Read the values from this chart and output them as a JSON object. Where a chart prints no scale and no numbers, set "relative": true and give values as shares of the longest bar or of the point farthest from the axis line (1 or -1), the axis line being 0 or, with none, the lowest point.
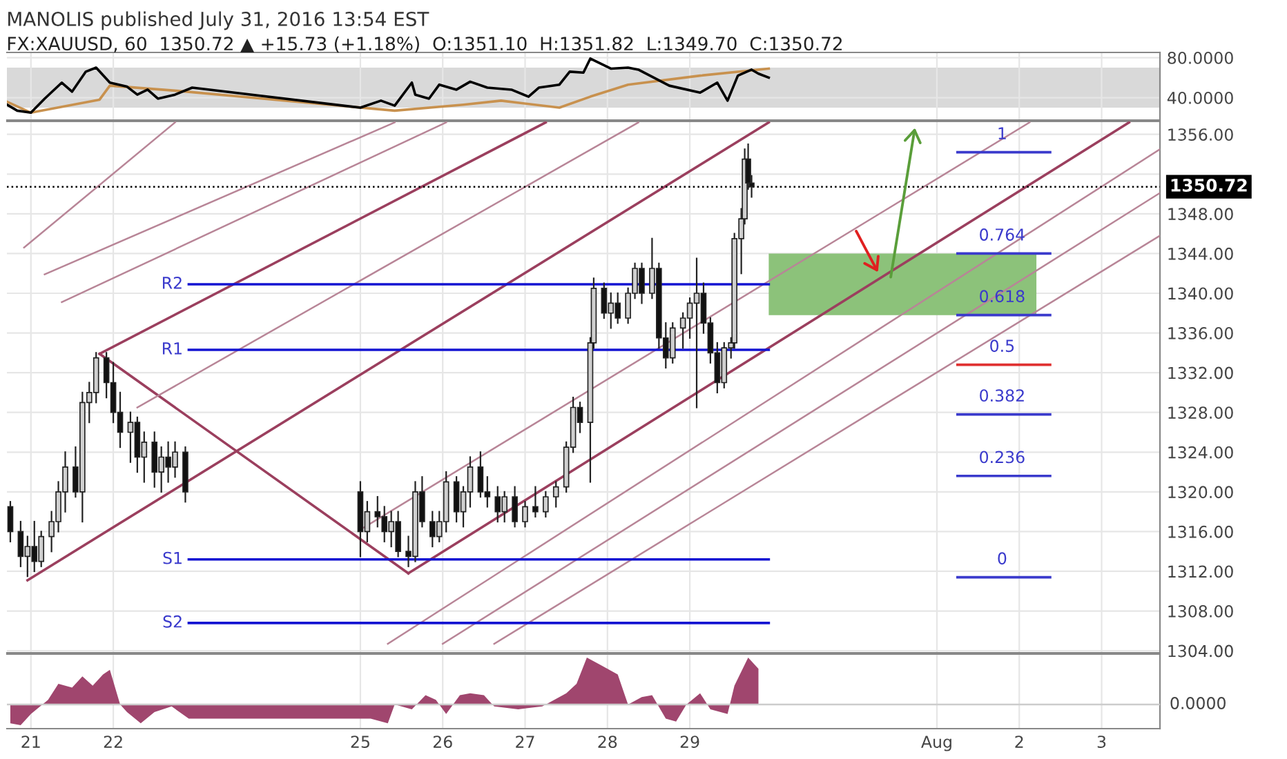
{
  "chart_data": [
    {
      "type": "line",
      "title": "MANOLIS published July 31, 2016 13:54 EST",
      "subtitle": "FX:XAUUSD, 60  1350.72 ▲ +15.73 (+1.18%)  O:1351.10  H:1351.82  L:1349.70  C:1350.72",
      "xlim": [
        "2016-07-20T17:00",
        "2016-08-03T17:00"
      ],
      "xticks": [
        {
          "value": "2016-07-21",
          "label": null
        },
        {
          "value": "2016-07-22",
          "label": null
        },
        {
          "value": "2016-07-25",
          "label": null
        },
        {
          "value": "2016-07-26",
          "label": null
        },
        {
          "value": "2016-07-27",
          "label": null
        },
        {
          "value": "2016-07-28",
          "label": null
        },
        {
          "value": "2016-07-29",
          "label": null
        },
        {
          "value": "2016-08-01",
          "label": null
        },
        {
          "value": "2016-08-02",
          "label": null
        },
        {
          "value": "2016-08-03",
          "label": null
        }
      ],
      "ylim": [
        17.6,
        85.2
      ],
      "yticks": [
        {
          "value": 40,
          "label": "40.0000"
        },
        {
          "value": 80,
          "label": "80.0000"
        }
      ],
      "tick_labels": "y",
      "grid": true,
      "legend": false,
      "bands": [
        {
          "axis": "y",
          "from": 30,
          "to": 70,
          "color": "#d9d9d9"
        }
      ],
      "series": [
        {
          "color": "#c8914e",
          "x": [
            "2016-07-20T17:00",
            "2016-07-21T00:00",
            "2016-07-21T20:00",
            "2016-07-21T23:00",
            "2016-07-22T18:00",
            "2016-07-25T10:00",
            "2016-07-26T06:00",
            "2016-07-26T17:00",
            "2016-07-27T10:00",
            "2016-07-27T19:00",
            "2016-07-28T06:00",
            "2016-07-29T03:00",
            "2016-07-29T23:00"
          ],
          "values": [
            36,
            25,
            38,
            52,
            47,
            27,
            33,
            37,
            30,
            41,
            53,
            62,
            69
          ]
        },
        {
          "color": "#000000",
          "x": [
            "2016-07-20T17:00",
            "2016-07-20T20:00",
            "2016-07-21T00:00",
            "2016-07-21T04:00",
            "2016-07-21T09:00",
            "2016-07-21T12:00",
            "2016-07-21T16:00",
            "2016-07-21T19:00",
            "2016-07-21T23:00",
            "2016-07-22T04:00",
            "2016-07-22T07:00",
            "2016-07-22T10:00",
            "2016-07-22T13:00",
            "2016-07-22T18:00",
            "2016-07-22T23:00",
            "2016-07-25T00:00",
            "2016-07-25T06:00",
            "2016-07-25T10:00",
            "2016-07-25T15:00",
            "2016-07-25T16:00",
            "2016-07-25T20:00",
            "2016-07-25T23:00",
            "2016-07-26T04:00",
            "2016-07-26T08:00",
            "2016-07-26T13:00",
            "2016-07-26T20:00",
            "2016-07-27T01:00",
            "2016-07-27T04:00",
            "2016-07-27T10:00",
            "2016-07-27T13:00",
            "2016-07-27T17:00",
            "2016-07-27T19:00",
            "2016-07-28T01:00",
            "2016-07-28T06:00",
            "2016-07-28T09:00",
            "2016-07-28T18:00",
            "2016-07-29T03:00",
            "2016-07-29T08:00",
            "2016-07-29T11:00",
            "2016-07-29T14:00",
            "2016-07-29T18:00",
            "2016-07-29T20:00",
            "2016-07-29T23:00"
          ],
          "values": [
            33,
            27,
            25,
            39,
            55,
            46,
            66,
            70,
            55,
            51,
            43,
            48,
            39,
            43,
            50,
            30,
            37,
            32,
            55,
            43,
            39,
            53,
            48,
            56,
            50,
            48,
            41,
            50,
            53,
            66,
            65,
            79,
            69,
            70,
            68,
            52,
            45,
            55,
            37,
            62,
            68,
            64,
            60
          ]
        }
      ]
    },
    {
      "type": "candlestick",
      "xlim": [
        "2016-07-20T17:00",
        "2016-08-03T17:00"
      ],
      "xticks": [
        {
          "value": "2016-07-21",
          "label": null
        },
        {
          "value": "2016-07-22",
          "label": null
        },
        {
          "value": "2016-07-25",
          "label": null
        },
        {
          "value": "2016-07-26",
          "label": null
        },
        {
          "value": "2016-07-27",
          "label": null
        },
        {
          "value": "2016-07-28",
          "label": null
        },
        {
          "value": "2016-07-29",
          "label": null
        },
        {
          "value": "2016-08-01",
          "label": null
        },
        {
          "value": "2016-08-02",
          "label": null
        },
        {
          "value": "2016-08-03",
          "label": null
        }
      ],
      "ylim": [
        1303.8,
        1357.3
      ],
      "yticks": [
        {
          "value": 1304,
          "label": "1304.00"
        },
        {
          "value": 1308,
          "label": "1308.00"
        },
        {
          "value": 1312,
          "label": "1312.00"
        },
        {
          "value": 1316,
          "label": "1316.00"
        },
        {
          "value": 1320,
          "label": "1320.00"
        },
        {
          "value": 1324,
          "label": "1324.00"
        },
        {
          "value": 1328,
          "label": "1328.00"
        },
        {
          "value": 1332,
          "label": "1332.00"
        },
        {
          "value": 1336,
          "label": "1336.00"
        },
        {
          "value": 1340,
          "label": "1340.00"
        },
        {
          "value": 1344,
          "label": "1344.00"
        },
        {
          "value": 1348,
          "label": "1348.00"
        },
        {
          "value": 1352,
          "label": null
        },
        {
          "value": 1356,
          "label": "1356.00"
        }
      ],
      "tick_labels": "y",
      "grid": true,
      "legend": false,
      "ref_lines": [
        {
          "axis": "y",
          "value": 1350.72,
          "label": "1350.72",
          "color": "#000000",
          "line_style": "dotted"
        }
      ],
      "x": [
        "2016-07-20T18:00",
        "2016-07-20T21:00",
        "2016-07-20T23:00",
        "2016-07-21T01:00",
        "2016-07-21T03:00",
        "2016-07-21T06:00",
        "2016-07-21T08:00",
        "2016-07-21T10:00",
        "2016-07-21T13:00",
        "2016-07-21T15:00",
        "2016-07-21T17:00",
        "2016-07-21T19:00",
        "2016-07-21T22:00",
        "2016-07-22T00:00",
        "2016-07-22T02:00",
        "2016-07-22T05:00",
        "2016-07-22T07:00",
        "2016-07-22T09:00",
        "2016-07-22T12:00",
        "2016-07-22T14:00",
        "2016-07-22T16:00",
        "2016-07-22T18:00",
        "2016-07-22T21:00",
        "2016-07-25T00:00",
        "2016-07-25T02:00",
        "2016-07-25T05:00",
        "2016-07-25T07:00",
        "2016-07-25T09:00",
        "2016-07-25T11:00",
        "2016-07-25T14:00",
        "2016-07-25T16:00",
        "2016-07-25T18:00",
        "2016-07-25T21:00",
        "2016-07-25T23:00",
        "2016-07-26T01:00",
        "2016-07-26T04:00",
        "2016-07-26T06:00",
        "2016-07-26T08:00",
        "2016-07-26T11:00",
        "2016-07-26T13:00",
        "2016-07-26T16:00",
        "2016-07-26T18:00",
        "2016-07-26T21:00",
        "2016-07-27T00:00",
        "2016-07-27T03:00",
        "2016-07-27T06:00",
        "2016-07-27T09:00",
        "2016-07-27T12:00",
        "2016-07-27T14:00",
        "2016-07-27T16:00",
        "2016-07-27T19:00",
        "2016-07-27T20:00",
        "2016-07-27T23:00",
        "2016-07-28T01:00",
        "2016-07-28T03:00",
        "2016-07-28T06:00",
        "2016-07-28T08:00",
        "2016-07-28T10:00",
        "2016-07-28T13:00",
        "2016-07-28T15:00",
        "2016-07-28T17:00",
        "2016-07-28T19:00",
        "2016-07-28T22:00",
        "2016-07-29T00:00",
        "2016-07-29T02:00",
        "2016-07-29T04:00",
        "2016-07-29T06:00",
        "2016-07-29T08:00",
        "2016-07-29T10:00",
        "2016-07-29T12:00",
        "2016-07-29T13:00",
        "2016-07-29T15:00",
        "2016-07-29T16:00",
        "2016-07-29T17:00",
        "2016-07-29T18:00"
      ],
      "ohlc": [
        [
          1318.5,
          1319,
          1315,
          1316
        ],
        [
          1316,
          1317,
          1312.5,
          1313.5
        ],
        [
          1313.5,
          1315.5,
          1311.5,
          1314.5
        ],
        [
          1314.5,
          1317,
          1312,
          1313
        ],
        [
          1313,
          1316,
          1312.5,
          1315.5
        ],
        [
          1315.5,
          1318,
          1314,
          1317
        ],
        [
          1317,
          1321,
          1316,
          1320
        ],
        [
          1320,
          1324,
          1318,
          1322.5
        ],
        [
          1322.5,
          1324.5,
          1319.5,
          1320
        ],
        [
          1320,
          1330,
          1317,
          1329
        ],
        [
          1329,
          1331,
          1327,
          1330
        ],
        [
          1330,
          1334,
          1329,
          1333.5
        ],
        [
          1333.5,
          1334,
          1329.5,
          1331
        ],
        [
          1331,
          1333,
          1327,
          1328
        ],
        [
          1328,
          1330,
          1324.5,
          1326
        ],
        [
          1326,
          1328,
          1323,
          1327
        ],
        [
          1327,
          1327.5,
          1322,
          1323.5
        ],
        [
          1323.5,
          1326,
          1321,
          1325
        ],
        [
          1325,
          1326,
          1320.5,
          1322
        ],
        [
          1322,
          1324.5,
          1320,
          1323.5
        ],
        [
          1323.5,
          1325,
          1321,
          1322.5
        ],
        [
          1322.5,
          1325,
          1321.5,
          1324
        ],
        [
          1324,
          1324.5,
          1319,
          1320
        ],
        [
          1320,
          1321,
          1313.5,
          1316
        ],
        [
          1316,
          1319,
          1315,
          1318
        ],
        [
          1318,
          1319.5,
          1316.5,
          1317.5
        ],
        [
          1317.5,
          1318.5,
          1315,
          1316
        ],
        [
          1316,
          1318,
          1314.5,
          1317
        ],
        [
          1317,
          1318,
          1313.5,
          1314
        ],
        [
          1314,
          1315.5,
          1312.5,
          1313.5
        ],
        [
          1313.5,
          1321,
          1313,
          1320
        ],
        [
          1320,
          1321.5,
          1316.5,
          1317
        ],
        [
          1317,
          1318,
          1314.5,
          1315.5
        ],
        [
          1315.5,
          1318,
          1315,
          1317
        ],
        [
          1317,
          1322,
          1316,
          1321
        ],
        [
          1321,
          1321.5,
          1317,
          1318
        ],
        [
          1318,
          1320.5,
          1316.5,
          1320
        ],
        [
          1320,
          1323.5,
          1318.5,
          1322.5
        ],
        [
          1322.5,
          1324,
          1319.5,
          1320
        ],
        [
          1320,
          1321.5,
          1318.5,
          1319.5
        ],
        [
          1319.5,
          1320.5,
          1317,
          1318
        ],
        [
          1318,
          1320,
          1317,
          1319.5
        ],
        [
          1319.5,
          1320.5,
          1316.5,
          1317
        ],
        [
          1317,
          1319,
          1316.5,
          1318.5
        ],
        [
          1318.5,
          1320.5,
          1317.5,
          1318
        ],
        [
          1318,
          1320,
          1317.5,
          1319.5
        ],
        [
          1319.5,
          1321,
          1318.5,
          1320.5
        ],
        [
          1320.5,
          1325,
          1320,
          1324.5
        ],
        [
          1324.5,
          1329.5,
          1324,
          1328.5
        ],
        [
          1328.5,
          1329,
          1326,
          1327
        ],
        [
          1327,
          1335.5,
          1321,
          1335
        ],
        [
          1335,
          1341.5,
          1334.5,
          1340.5
        ],
        [
          1340.5,
          1341,
          1337.5,
          1338
        ],
        [
          1338,
          1340,
          1336.5,
          1339
        ],
        [
          1339,
          1340,
          1337,
          1337.5
        ],
        [
          1337.5,
          1340.5,
          1337,
          1340
        ],
        [
          1340,
          1343,
          1339.5,
          1342.5
        ],
        [
          1342.5,
          1343,
          1339,
          1340
        ],
        [
          1340,
          1345.5,
          1339.5,
          1342.5
        ],
        [
          1342.5,
          1343,
          1334.5,
          1335.5
        ],
        [
          1335.5,
          1337,
          1332.5,
          1333.5
        ],
        [
          1333.5,
          1337,
          1333,
          1336.5
        ],
        [
          1336.5,
          1338,
          1334.5,
          1337.5
        ],
        [
          1337.5,
          1339.5,
          1335.5,
          1339
        ],
        [
          1339,
          1343.5,
          1328.5,
          1340
        ],
        [
          1340,
          1341,
          1336,
          1337
        ],
        [
          1337,
          1337.5,
          1333,
          1334
        ],
        [
          1334,
          1335,
          1330,
          1331
        ],
        [
          1331,
          1335,
          1330.5,
          1334.5
        ],
        [
          1334.5,
          1335.5,
          1333.5,
          1335
        ],
        [
          1335,
          1346,
          1334.5,
          1345.5
        ],
        [
          1345.5,
          1348.5,
          1342,
          1347.5
        ],
        [
          1347.5,
          1354.5,
          1347,
          1353.5
        ],
        [
          1353.5,
          1355,
          1350.5,
          1351.1
        ],
        [
          1351.1,
          1351.82,
          1349.7,
          1350.72
        ]
      ],
      "series": [
        {
          "type": "bar",
          "color": "#8cc27a",
          "x": [
            "2016-07-31T14:00"
          ],
          "values": [
            6.2
          ],
          "base": [
            1337.8
          ]
        },
        {
          "type": "line",
          "color": "#9b3f5e",
          "x": [
            "2016-07-21T20:00",
            "2016-07-25T14:00"
          ],
          "values": [
            1333.9,
            1311.8
          ]
        },
        {
          "type": "line",
          "color": "#9b3f5e",
          "x": [
            "2016-07-21T20:00",
            "2016-07-27T06:00"
          ],
          "values": [
            1333.9,
            1357.2
          ]
        },
        {
          "type": "line",
          "color": "#9b3f5e",
          "x": [
            "2016-07-20T23:00",
            "2016-07-29T23:00"
          ],
          "values": [
            1311.1,
            1357.2
          ]
        },
        {
          "type": "line",
          "color": "#9b3f5e",
          "x": [
            "2016-07-25T14:00",
            "2016-08-03T08:00"
          ],
          "values": [
            1311.8,
            1357.2
          ]
        },
        {
          "type": "line",
          "color": "#b88597",
          "x": [
            "2016-07-20T22:00",
            "2016-07-22T18:00"
          ],
          "values": [
            1344.6,
            1357.2
          ]
        },
        {
          "type": "line",
          "color": "#b88597",
          "x": [
            "2016-07-21T04:00",
            "2016-07-25T10:00"
          ],
          "values": [
            1341.9,
            1357.2
          ]
        },
        {
          "type": "line",
          "color": "#b88597",
          "x": [
            "2016-07-21T09:00",
            "2016-07-26T01:00"
          ],
          "values": [
            1339.1,
            1357.2
          ]
        },
        {
          "type": "line",
          "color": "#b88597",
          "x": [
            "2016-07-22T07:00",
            "2016-07-28T09:00"
          ],
          "values": [
            1328.5,
            1357.2
          ]
        },
        {
          "type": "line",
          "color": "#b88597",
          "x": [
            "2016-07-25T01:00",
            "2016-08-02T03:00"
          ],
          "values": [
            1316.4,
            1357.2
          ]
        },
        {
          "type": "line",
          "color": "#b88597",
          "x": [
            "2016-07-25T08:00",
            "2016-08-03T17:00"
          ],
          "values": [
            1304.7,
            1354.5
          ]
        },
        {
          "type": "line",
          "color": "#b88597",
          "x": [
            "2016-07-26T00:00",
            "2016-08-03T17:00"
          ],
          "values": [
            1304.7,
            1350.1
          ]
        },
        {
          "type": "line",
          "color": "#b88597",
          "x": [
            "2016-07-26T15:00",
            "2016-08-03T17:00"
          ],
          "values": [
            1304.7,
            1345.8
          ]
        },
        {
          "type": "line",
          "color": "#1414d2",
          "x": [
            "2016-07-22T22:00",
            "2016-07-29T23:00"
          ],
          "values": [
            1340.9,
            1340.9
          ]
        },
        {
          "type": "line",
          "color": "#1414d2",
          "x": [
            "2016-07-22T22:00",
            "2016-07-29T23:00"
          ],
          "values": [
            1334.3,
            1334.3
          ]
        },
        {
          "type": "line",
          "color": "#1414d2",
          "x": [
            "2016-07-22T22:00",
            "2016-07-29T23:00"
          ],
          "values": [
            1313.2,
            1313.2
          ]
        },
        {
          "type": "line",
          "color": "#1414d2",
          "x": [
            "2016-07-22T22:00",
            "2016-07-29T23:00"
          ],
          "values": [
            1306.8,
            1306.8
          ]
        },
        {
          "type": "line",
          "color": "#3a3acc",
          "x": [
            "2016-08-01T06:00",
            "2016-08-02T09:00"
          ],
          "values": [
            1354.2,
            1354.2
          ]
        },
        {
          "type": "line",
          "color": "#3a3acc",
          "x": [
            "2016-08-01T06:00",
            "2016-08-02T09:00"
          ],
          "values": [
            1344.0,
            1344.0
          ]
        },
        {
          "type": "line",
          "color": "#3a3acc",
          "x": [
            "2016-08-01T06:00",
            "2016-08-02T09:00"
          ],
          "values": [
            1337.8,
            1337.8
          ]
        },
        {
          "type": "line",
          "color": "#e03030",
          "x": [
            "2016-08-01T06:00",
            "2016-08-02T09:00"
          ],
          "values": [
            1332.8,
            1332.8
          ]
        },
        {
          "type": "line",
          "color": "#3a3acc",
          "x": [
            "2016-08-01T06:00",
            "2016-08-02T09:00"
          ],
          "values": [
            1327.8,
            1327.8
          ]
        },
        {
          "type": "line",
          "color": "#3a3acc",
          "x": [
            "2016-08-01T06:00",
            "2016-08-02T09:00"
          ],
          "values": [
            1321.6,
            1321.6
          ]
        },
        {
          "type": "line",
          "color": "#3a3acc",
          "x": [
            "2016-08-01T06:00",
            "2016-08-02T09:00"
          ],
          "values": [
            1311.4,
            1311.4
          ]
        }
      ],
      "annotations": [
        {
          "text": "R2",
          "x": "2016-07-22T22:00",
          "y": 1340.9
        },
        {
          "text": "R1",
          "x": "2016-07-22T22:00",
          "y": 1334.3
        },
        {
          "text": "S1",
          "x": "2016-07-22T22:00",
          "y": 1313.2
        },
        {
          "text": "S2",
          "x": "2016-07-22T22:00",
          "y": 1306.8
        },
        {
          "text": "1",
          "x": "2016-08-01T19:00",
          "y": 1354.2
        },
        {
          "text": "0.764",
          "x": "2016-08-01T19:00",
          "y": 1344.0
        },
        {
          "text": "0.618",
          "x": "2016-08-01T19:00",
          "y": 1337.8
        },
        {
          "text": "0.5",
          "x": "2016-08-01T19:00",
          "y": 1332.8
        },
        {
          "text": "0.382",
          "x": "2016-08-01T19:00",
          "y": 1327.8
        },
        {
          "text": "0.236",
          "x": "2016-08-01T19:00",
          "y": 1321.6
        },
        {
          "text": "0",
          "x": "2016-08-01T19:00",
          "y": 1311.4
        }
      ]
    },
    {
      "type": "area",
      "relative": true,
      "xlim": [
        "2016-07-20T17:00",
        "2016-08-03T17:00"
      ],
      "xticks": [
        {
          "value": "2016-07-21",
          "label": "21"
        },
        {
          "value": "2016-07-22",
          "label": "22"
        },
        {
          "value": "2016-07-25",
          "label": "25"
        },
        {
          "value": "2016-07-26",
          "label": "26"
        },
        {
          "value": "2016-07-27",
          "label": "27"
        },
        {
          "value": "2016-07-28",
          "label": "28"
        },
        {
          "value": "2016-07-29",
          "label": "29"
        },
        {
          "value": "2016-08-01",
          "label": "Aug"
        },
        {
          "value": "2016-08-02",
          "label": "2"
        },
        {
          "value": "2016-08-03",
          "label": "3"
        }
      ],
      "tick_labels": "x",
      "grid": true,
      "legend": false,
      "ref_lines": [
        {
          "axis": "y",
          "value": 0,
          "label": "0.0000"
        }
      ],
      "series": [
        {
          "color": "#a0466e",
          "x": [
            "2016-07-20T18:00",
            "2016-07-20T21:00",
            "2016-07-21T00:00",
            "2016-07-21T05:00",
            "2016-07-21T08:00",
            "2016-07-21T12:00",
            "2016-07-21T15:00",
            "2016-07-21T18:00",
            "2016-07-21T21:00",
            "2016-07-21T23:00",
            "2016-07-22T02:00",
            "2016-07-22T04:00",
            "2016-07-22T08:00",
            "2016-07-22T12:00",
            "2016-07-22T17:00",
            "2016-07-22T22:00",
            "2016-07-25T03:00",
            "2016-07-25T08:00",
            "2016-07-25T10:00",
            "2016-07-25T15:00",
            "2016-07-25T19:00",
            "2016-07-25T22:00",
            "2016-07-26T01:00",
            "2016-07-26T05:00",
            "2016-07-26T08:00",
            "2016-07-26T12:00",
            "2016-07-26T15:00",
            "2016-07-26T22:00",
            "2016-07-27T05:00",
            "2016-07-27T12:00",
            "2016-07-27T15:00",
            "2016-07-27T18:00",
            "2016-07-27T22:00",
            "2016-07-28T03:00",
            "2016-07-28T06:00",
            "2016-07-28T10:00",
            "2016-07-28T13:00",
            "2016-07-28T17:00",
            "2016-07-28T20:00",
            "2016-07-28T23:00",
            "2016-07-29T03:00",
            "2016-07-29T06:00",
            "2016-07-29T11:00",
            "2016-07-29T13:00",
            "2016-07-29T17:00",
            "2016-07-29T20:00"
          ],
          "values": [
            -0.4,
            -0.44,
            -0.2,
            0.1,
            0.44,
            0.36,
            0.6,
            0.4,
            0.64,
            0.74,
            0,
            -0.16,
            -0.4,
            -0.16,
            -0.04,
            -0.3,
            -0.3,
            -0.4,
            0,
            -0.1,
            0.2,
            0.1,
            -0.2,
            0.2,
            0.24,
            0.2,
            -0.04,
            -0.1,
            -0.04,
            0.24,
            0.44,
            1.0,
            0.84,
            0.64,
            0,
            0.16,
            0.2,
            -0.3,
            -0.36,
            0,
            0.24,
            -0.1,
            -0.2,
            0.4,
            1.0,
            0.76
          ]
        }
      ]
    }
  ]
}
